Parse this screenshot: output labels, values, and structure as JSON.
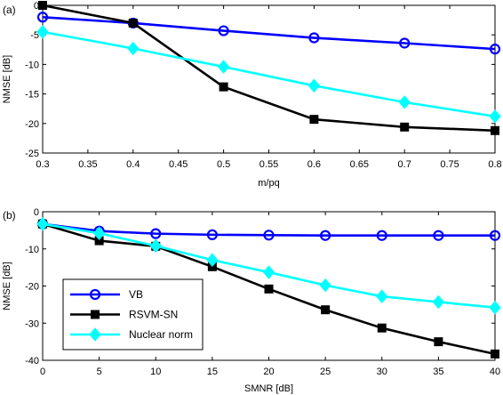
{
  "chart_data": [
    {
      "type": "line",
      "panel_label": "(a)",
      "xlabel": "m/pq",
      "ylabel": "NMSE [dB]",
      "xlim": [
        0.3,
        0.8
      ],
      "ylim": [
        -25,
        0
      ],
      "xticks": [
        0.3,
        0.35,
        0.4,
        0.45,
        0.5,
        0.55,
        0.6,
        0.65,
        0.7,
        0.75,
        0.8
      ],
      "xtick_labels": [
        "0.3",
        "0.35",
        "0.4",
        "0.45",
        "0.5",
        "0.55",
        "0.6",
        "0.65",
        "0.7",
        "0.75",
        "0.8"
      ],
      "yticks": [
        -25,
        -20,
        -15,
        -10,
        -5,
        0
      ],
      "ytick_labels": [
        "-25",
        "-20",
        "-15",
        "-10",
        "-5",
        "0"
      ],
      "grid": false,
      "legend": null,
      "x": [
        0.3,
        0.4,
        0.5,
        0.6,
        0.7,
        0.8
      ],
      "series": [
        {
          "name": "VB",
          "color": "#0000ff",
          "marker": "circle",
          "values": [
            -2.0,
            -3.0,
            -4.3,
            -5.5,
            -6.4,
            -7.4
          ]
        },
        {
          "name": "RSVM-SN",
          "color": "#000000",
          "marker": "square",
          "values": [
            0.0,
            -3.0,
            -13.8,
            -19.3,
            -20.6,
            -21.2
          ]
        },
        {
          "name": "Nuclear norm",
          "color": "#00ffff",
          "marker": "diamond",
          "values": [
            -4.5,
            -7.3,
            -10.4,
            -13.6,
            -16.4,
            -18.8
          ]
        }
      ]
    },
    {
      "type": "line",
      "panel_label": "(b)",
      "xlabel": "SMNR [dB]",
      "ylabel": "NMSE [dB]",
      "xlim": [
        0,
        40
      ],
      "ylim": [
        -40,
        0
      ],
      "xticks": [
        0,
        5,
        10,
        15,
        20,
        25,
        30,
        35,
        40
      ],
      "xtick_labels": [
        "0",
        "5",
        "10",
        "15",
        "20",
        "25",
        "30",
        "35",
        "40"
      ],
      "yticks": [
        -40,
        -30,
        -20,
        -10,
        0
      ],
      "ytick_labels": [
        "-40",
        "-30",
        "-20",
        "-10",
        "0"
      ],
      "grid": false,
      "legend": "lower-left",
      "x": [
        0,
        5,
        10,
        15,
        20,
        25,
        30,
        35,
        40
      ],
      "series": [
        {
          "name": "VB",
          "color": "#0000ff",
          "marker": "circle",
          "values": [
            -3.3,
            -5.2,
            -5.9,
            -6.2,
            -6.3,
            -6.4,
            -6.4,
            -6.4,
            -6.4
          ]
        },
        {
          "name": "RSVM-SN",
          "color": "#000000",
          "marker": "square",
          "values": [
            -3.3,
            -7.8,
            -9.3,
            -14.8,
            -20.8,
            -26.4,
            -31.3,
            -35.0,
            -38.3
          ]
        },
        {
          "name": "Nuclear norm",
          "color": "#00ffff",
          "marker": "diamond",
          "values": [
            -3.3,
            -5.8,
            -9.2,
            -13.0,
            -16.3,
            -19.8,
            -22.8,
            -24.3,
            -25.8
          ]
        }
      ]
    }
  ]
}
